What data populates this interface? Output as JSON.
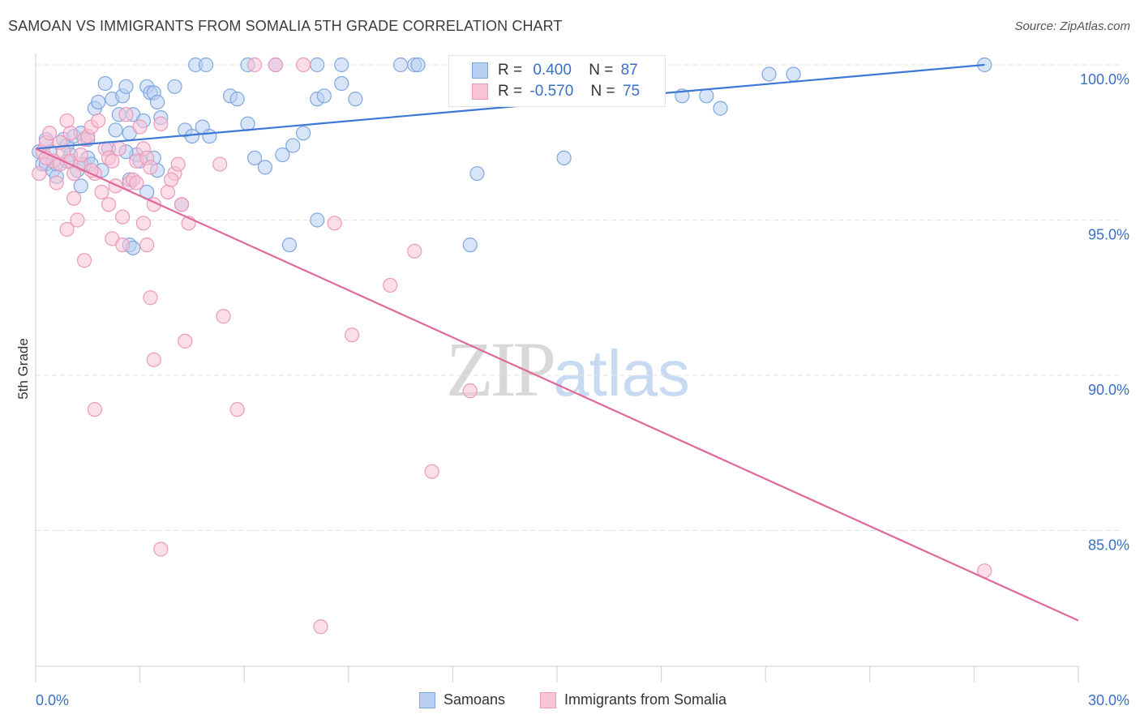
{
  "title": "SAMOAN VS IMMIGRANTS FROM SOMALIA 5TH GRADE CORRELATION CHART",
  "source": "Source: ZipAtlas.com",
  "watermark": {
    "zip": "ZIP",
    "atlas": "atlas"
  },
  "legend": {
    "r_label": "R =",
    "n_label": "N =",
    "samoans": {
      "r": "0.400",
      "n": "87"
    },
    "somalia": {
      "r": "-0.570",
      "n": "75"
    }
  },
  "bottom_legend": {
    "samoans": "Samoans",
    "somalia": "Immigrants from Somalia"
  },
  "colors": {
    "blue": "#3d78d6",
    "blue_fill": "#b8d0f2",
    "blue_stroke": "#7fa7df",
    "pink": "#e0699a",
    "pink_fill": "#f7c3d5",
    "pink_stroke": "#eb9ab9",
    "grid": "#e4e4e4",
    "axis_text": "#3b6fc4"
  },
  "chart_data": {
    "type": "scatter",
    "title": "SAMOAN VS IMMIGRANTS FROM SOMALIA 5TH GRADE CORRELATION CHART",
    "xlabel": "",
    "ylabel": "5th Grade",
    "xlim": [
      0,
      30
    ],
    "ylim": [
      80.5,
      100.5
    ],
    "x_tick_labels": [
      "0.0%",
      "30.0%"
    ],
    "y_ticks": [
      85,
      90,
      95,
      100
    ],
    "y_tick_labels": [
      "85.0%",
      "90.0%",
      "95.0%",
      "100.0%"
    ],
    "grid": true,
    "legend_position": "top-center",
    "series": [
      {
        "name": "Samoans",
        "color": "#3d78d6",
        "r": 0.4,
        "n": 87,
        "trend": [
          [
            0,
            97.3
          ],
          [
            27.3,
            100.0
          ]
        ],
        "points": [
          [
            0.1,
            97.2
          ],
          [
            0.2,
            96.8
          ],
          [
            0.3,
            96.8
          ],
          [
            0.4,
            97.2
          ],
          [
            0.5,
            96.6
          ],
          [
            0.6,
            96.8
          ],
          [
            0.8,
            97.6
          ],
          [
            0.9,
            97.4
          ],
          [
            1.0,
            97.1
          ],
          [
            1.1,
            97.7
          ],
          [
            1.2,
            96.6
          ],
          [
            1.3,
            97.8
          ],
          [
            1.4,
            96.8
          ],
          [
            1.5,
            97.0
          ],
          [
            1.6,
            96.8
          ],
          [
            1.7,
            98.6
          ],
          [
            1.8,
            98.8
          ],
          [
            2.0,
            99.4
          ],
          [
            2.1,
            97.3
          ],
          [
            2.2,
            98.9
          ],
          [
            2.3,
            97.9
          ],
          [
            2.4,
            98.4
          ],
          [
            2.5,
            99.0
          ],
          [
            2.6,
            99.3
          ],
          [
            2.7,
            97.8
          ],
          [
            2.8,
            98.4
          ],
          [
            2.9,
            97.1
          ],
          [
            3.0,
            96.9
          ],
          [
            3.1,
            98.2
          ],
          [
            3.2,
            99.3
          ],
          [
            3.3,
            99.1
          ],
          [
            3.4,
            99.1
          ],
          [
            3.5,
            98.8
          ],
          [
            3.6,
            98.3
          ],
          [
            4.0,
            99.3
          ],
          [
            4.3,
            97.9
          ],
          [
            4.5,
            97.7
          ],
          [
            4.8,
            98.0
          ],
          [
            5.0,
            97.7
          ],
          [
            5.6,
            99.0
          ],
          [
            5.8,
            98.9
          ],
          [
            6.1,
            98.1
          ],
          [
            6.3,
            97.0
          ],
          [
            6.6,
            96.7
          ],
          [
            7.1,
            97.1
          ],
          [
            7.4,
            97.4
          ],
          [
            7.7,
            97.8
          ],
          [
            8.1,
            98.9
          ],
          [
            8.3,
            99.0
          ],
          [
            8.8,
            99.4
          ],
          [
            9.2,
            98.9
          ],
          [
            12.7,
            96.5
          ],
          [
            15.2,
            97.0
          ],
          [
            18.6,
            99.0
          ],
          [
            19.3,
            99.0
          ],
          [
            19.7,
            98.6
          ],
          [
            21.1,
            99.7
          ],
          [
            21.8,
            99.7
          ],
          [
            27.3,
            100.0
          ],
          [
            4.6,
            100.0
          ],
          [
            4.9,
            100.0
          ],
          [
            6.1,
            100.0
          ],
          [
            6.9,
            100.0
          ],
          [
            8.1,
            100.0
          ],
          [
            8.8,
            100.0
          ],
          [
            10.5,
            100.0
          ],
          [
            10.9,
            100.0
          ],
          [
            11.0,
            100.0
          ],
          [
            12.1,
            100.0
          ],
          [
            13.0,
            100.0
          ],
          [
            3.2,
            95.9
          ],
          [
            3.5,
            96.6
          ],
          [
            4.2,
            95.5
          ],
          [
            2.7,
            94.2
          ],
          [
            2.8,
            94.1
          ],
          [
            7.3,
            94.2
          ],
          [
            12.5,
            94.2
          ],
          [
            8.1,
            95.0
          ],
          [
            1.3,
            96.1
          ],
          [
            0.6,
            96.4
          ],
          [
            1.9,
            96.6
          ],
          [
            2.6,
            97.2
          ],
          [
            3.4,
            97.0
          ],
          [
            0.3,
            97.6
          ],
          [
            2.7,
            96.3
          ],
          [
            0.9,
            96.9
          ],
          [
            1.5,
            97.6
          ]
        ]
      },
      {
        "name": "Immigrants from Somalia",
        "color": "#e0699a",
        "r": -0.57,
        "n": 75,
        "trend": [
          [
            0,
            97.3
          ],
          [
            30,
            82.1
          ]
        ],
        "points": [
          [
            0.1,
            96.5
          ],
          [
            0.2,
            97.2
          ],
          [
            0.3,
            97.5
          ],
          [
            0.4,
            97.8
          ],
          [
            0.5,
            96.9
          ],
          [
            0.6,
            96.2
          ],
          [
            0.7,
            96.8
          ],
          [
            0.8,
            97.2
          ],
          [
            0.9,
            98.2
          ],
          [
            1.0,
            96.9
          ],
          [
            1.1,
            95.7
          ],
          [
            1.2,
            95.0
          ],
          [
            1.3,
            96.8
          ],
          [
            1.4,
            97.6
          ],
          [
            1.5,
            97.7
          ],
          [
            1.6,
            98.0
          ],
          [
            1.7,
            96.5
          ],
          [
            1.8,
            98.2
          ],
          [
            1.9,
            95.9
          ],
          [
            2.0,
            97.3
          ],
          [
            2.1,
            95.5
          ],
          [
            2.2,
            94.4
          ],
          [
            2.3,
            96.1
          ],
          [
            2.4,
            97.3
          ],
          [
            2.5,
            95.1
          ],
          [
            2.6,
            98.4
          ],
          [
            2.7,
            96.2
          ],
          [
            2.8,
            96.3
          ],
          [
            2.9,
            96.9
          ],
          [
            3.0,
            98.0
          ],
          [
            3.1,
            97.3
          ],
          [
            3.2,
            97.0
          ],
          [
            3.3,
            96.7
          ],
          [
            3.4,
            95.5
          ],
          [
            3.6,
            98.1
          ],
          [
            3.8,
            95.9
          ],
          [
            4.0,
            96.5
          ],
          [
            4.1,
            96.8
          ],
          [
            4.2,
            95.5
          ],
          [
            0.9,
            94.7
          ],
          [
            1.4,
            93.7
          ],
          [
            2.5,
            94.2
          ],
          [
            3.1,
            94.9
          ],
          [
            3.2,
            94.2
          ],
          [
            3.3,
            92.5
          ],
          [
            3.4,
            90.5
          ],
          [
            4.3,
            91.1
          ],
          [
            1.7,
            88.9
          ],
          [
            5.4,
            91.9
          ],
          [
            5.8,
            88.9
          ],
          [
            6.3,
            100.0
          ],
          [
            6.9,
            100.0
          ],
          [
            7.7,
            100.0
          ],
          [
            8.6,
            94.9
          ],
          [
            9.1,
            91.3
          ],
          [
            10.2,
            92.9
          ],
          [
            10.9,
            94.0
          ],
          [
            11.4,
            86.9
          ],
          [
            12.5,
            89.5
          ],
          [
            15.4,
            100.0
          ],
          [
            27.3,
            83.7
          ],
          [
            3.6,
            84.4
          ],
          [
            8.2,
            81.9
          ],
          [
            5.3,
            96.8
          ],
          [
            2.1,
            97.0
          ],
          [
            1.1,
            96.5
          ],
          [
            0.3,
            97.0
          ],
          [
            0.7,
            97.5
          ],
          [
            1.3,
            97.1
          ],
          [
            2.9,
            96.2
          ],
          [
            4.4,
            94.9
          ],
          [
            3.9,
            96.3
          ],
          [
            1.6,
            96.6
          ],
          [
            2.2,
            96.9
          ],
          [
            1.0,
            97.8
          ]
        ]
      }
    ]
  }
}
